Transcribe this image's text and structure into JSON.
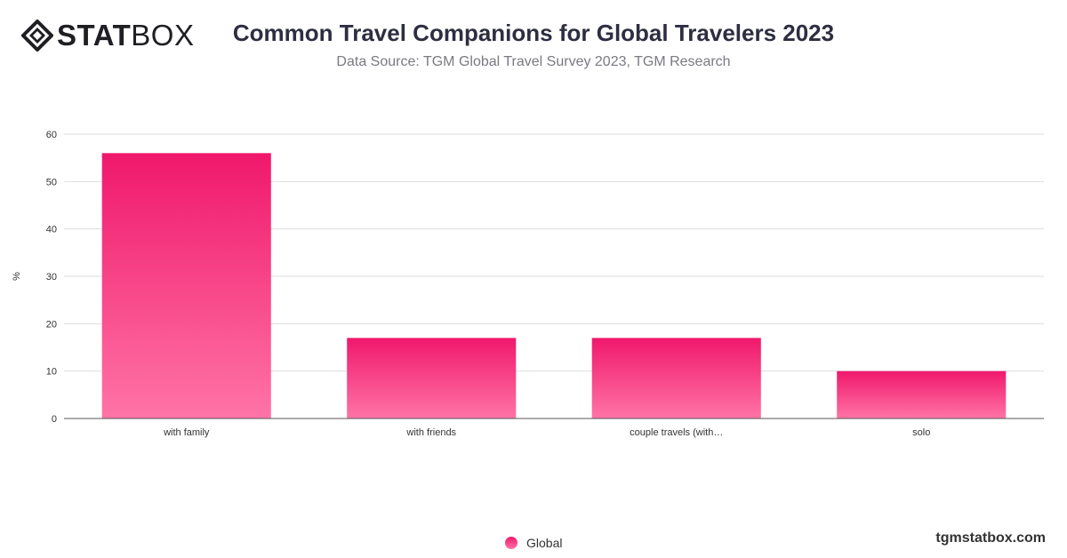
{
  "brand": {
    "logo_bold": "STAT",
    "logo_light": "BOX",
    "watermark": "tgmstatbox.com"
  },
  "colors": {
    "bar_top": "#f0186c",
    "bar_bottom": "#ff74a6",
    "grid": "#dedede",
    "axis": "#555555"
  },
  "chart_data": {
    "type": "bar",
    "title": "Common Travel Companions for Global Travelers 2023",
    "subtitle": "Data Source: TGM Global Travel Survey 2023, TGM Research",
    "xlabel": "",
    "ylabel": "%",
    "ylim": [
      0,
      60
    ],
    "yticks": [
      0,
      10,
      20,
      30,
      40,
      50,
      60
    ],
    "grid": true,
    "legend_position": "bottom",
    "categories": [
      "with family",
      "with friends",
      "couple travels (with…",
      "solo"
    ],
    "series": [
      {
        "name": "Global",
        "values": [
          56,
          17,
          17,
          10
        ]
      }
    ]
  }
}
